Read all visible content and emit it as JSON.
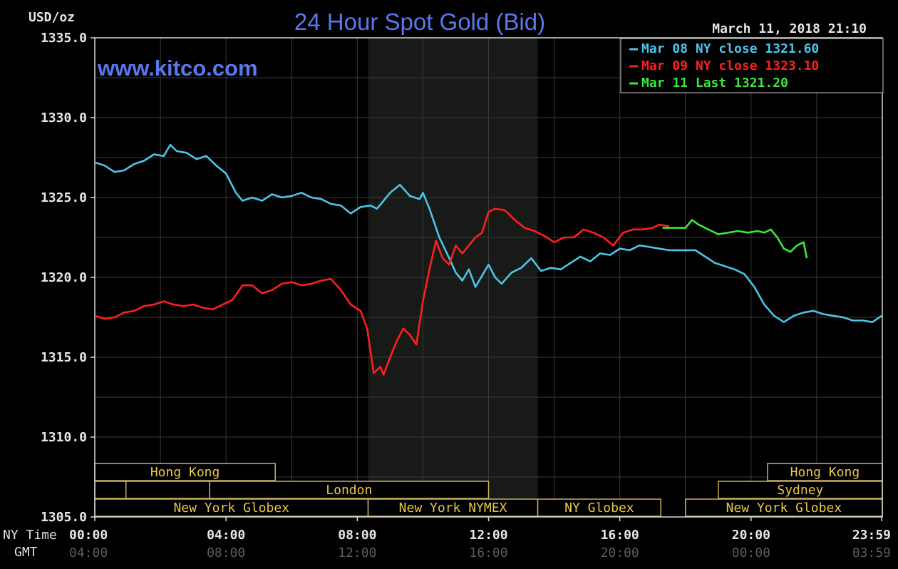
{
  "chart_data": {
    "type": "line",
    "title": "24 Hour Spot Gold (Bid)",
    "watermark": "www.kitco.com",
    "timestamp": "March 11, 2018 21:10",
    "ylabel": "USD/oz",
    "ylim": [
      1305.0,
      1335.0
    ],
    "y_ticks": [
      "1335.0",
      "1330.0",
      "1325.0",
      "1320.0",
      "1315.0",
      "1310.0",
      "1305.0"
    ],
    "y_tick_values": [
      1335,
      1330,
      1325,
      1320,
      1315,
      1310,
      1305
    ],
    "xlim": [
      0,
      24
    ],
    "x_tick_hours": [
      0,
      4,
      8,
      12,
      16,
      20,
      23.983
    ],
    "ny_time_label": "NY Time",
    "gmt_label": "GMT",
    "ny_time_ticks": [
      "00:00",
      "04:00",
      "08:00",
      "12:00",
      "16:00",
      "20:00",
      "23:59"
    ],
    "gmt_ticks": [
      "04:00",
      "08:00",
      "12:00",
      "16:00",
      "20:00",
      "00:00",
      "03:59"
    ],
    "grid": true,
    "legend_position": "top-right",
    "shaded_session": {
      "from_hour": 8.33,
      "to_hour": 13.5
    },
    "series": [
      {
        "name": "Mar 08 NY close 1321.60",
        "color": "#4fc3e8",
        "x": [
          0.0,
          0.3,
          0.6,
          0.9,
          1.2,
          1.5,
          1.8,
          2.1,
          2.3,
          2.5,
          2.8,
          3.1,
          3.4,
          3.7,
          4.0,
          4.3,
          4.5,
          4.8,
          5.1,
          5.4,
          5.7,
          6.0,
          6.3,
          6.6,
          6.9,
          7.2,
          7.5,
          7.8,
          8.1,
          8.4,
          8.6,
          8.8,
          9.0,
          9.3,
          9.6,
          9.9,
          10.0,
          10.2,
          10.5,
          10.8,
          11.0,
          11.2,
          11.4,
          11.6,
          11.8,
          12.0,
          12.2,
          12.4,
          12.7,
          13.0,
          13.3,
          13.6,
          13.9,
          14.2,
          14.5,
          14.8,
          15.1,
          15.4,
          15.7,
          16.0,
          16.3,
          16.6,
          16.9,
          17.2,
          17.5,
          17.8,
          18.0,
          18.3,
          18.6,
          18.9,
          19.2,
          19.5,
          19.8,
          20.1,
          20.4,
          20.7,
          21.0,
          21.3,
          21.6,
          21.9,
          22.2,
          22.5,
          22.8,
          23.1,
          23.4,
          23.7,
          23.983
        ],
        "values": [
          1327.2,
          1327.0,
          1326.6,
          1326.7,
          1327.1,
          1327.3,
          1327.7,
          1327.6,
          1328.3,
          1327.9,
          1327.8,
          1327.4,
          1327.6,
          1327.0,
          1326.5,
          1325.3,
          1324.8,
          1325.0,
          1324.8,
          1325.2,
          1325.0,
          1325.1,
          1325.3,
          1325.0,
          1324.9,
          1324.6,
          1324.5,
          1324.0,
          1324.4,
          1324.5,
          1324.3,
          1324.8,
          1325.3,
          1325.8,
          1325.1,
          1324.9,
          1325.3,
          1324.3,
          1322.5,
          1321.2,
          1320.3,
          1319.8,
          1320.5,
          1319.4,
          1320.1,
          1320.8,
          1320.0,
          1319.6,
          1320.3,
          1320.6,
          1321.2,
          1320.4,
          1320.6,
          1320.5,
          1320.9,
          1321.3,
          1321.0,
          1321.5,
          1321.4,
          1321.8,
          1321.7,
          1322.0,
          1321.9,
          1321.8,
          1321.7,
          1321.7,
          1321.7,
          1321.7,
          1321.3,
          1320.9,
          1320.7,
          1320.5,
          1320.2,
          1319.4,
          1318.3,
          1317.6,
          1317.2,
          1317.6,
          1317.8,
          1317.9,
          1317.7,
          1317.6,
          1317.5,
          1317.3,
          1317.3,
          1317.2,
          1317.6
        ]
      },
      {
        "name": "Mar 09 NY close 1323.10",
        "color": "#ff1f1f",
        "x": [
          0.0,
          0.3,
          0.6,
          0.9,
          1.2,
          1.5,
          1.8,
          2.1,
          2.4,
          2.7,
          3.0,
          3.3,
          3.6,
          3.9,
          4.2,
          4.5,
          4.8,
          5.1,
          5.4,
          5.7,
          6.0,
          6.3,
          6.6,
          6.9,
          7.2,
          7.5,
          7.8,
          8.1,
          8.3,
          8.5,
          8.7,
          8.8,
          9.0,
          9.2,
          9.4,
          9.6,
          9.8,
          10.0,
          10.2,
          10.4,
          10.6,
          10.8,
          11.0,
          11.2,
          11.4,
          11.6,
          11.8,
          12.0,
          12.2,
          12.5,
          12.8,
          13.1,
          13.4,
          13.7,
          14.0,
          14.3,
          14.6,
          14.9,
          15.2,
          15.5,
          15.8,
          16.1,
          16.4,
          16.7,
          17.0,
          17.2,
          17.5
        ],
        "values": [
          1317.6,
          1317.4,
          1317.5,
          1317.8,
          1317.9,
          1318.2,
          1318.3,
          1318.5,
          1318.3,
          1318.2,
          1318.3,
          1318.1,
          1318.0,
          1318.3,
          1318.6,
          1319.5,
          1319.5,
          1319.0,
          1319.2,
          1319.6,
          1319.7,
          1319.5,
          1319.6,
          1319.8,
          1319.9,
          1319.2,
          1318.3,
          1317.9,
          1316.8,
          1314.0,
          1314.4,
          1313.9,
          1315.0,
          1316.0,
          1316.8,
          1316.4,
          1315.8,
          1318.5,
          1320.5,
          1322.3,
          1321.2,
          1320.8,
          1322.0,
          1321.5,
          1322.0,
          1322.5,
          1322.8,
          1324.1,
          1324.3,
          1324.2,
          1323.6,
          1323.1,
          1322.9,
          1322.6,
          1322.2,
          1322.5,
          1322.5,
          1323.0,
          1322.8,
          1322.5,
          1322.0,
          1322.8,
          1323.0,
          1323.0,
          1323.1,
          1323.3,
          1323.2
        ]
      },
      {
        "name": "Mar 11 Last 1321.20",
        "color": "#3ae83a",
        "x": [
          17.3,
          17.6,
          18.0,
          18.2,
          18.4,
          18.7,
          19.0,
          19.3,
          19.6,
          19.9,
          20.2,
          20.4,
          20.6,
          20.8,
          21.0,
          21.2,
          21.4,
          21.6,
          21.7
        ],
        "values": [
          1323.1,
          1323.1,
          1323.1,
          1323.6,
          1323.3,
          1323.0,
          1322.7,
          1322.8,
          1322.9,
          1322.8,
          1322.9,
          1322.8,
          1323.0,
          1322.5,
          1321.8,
          1321.6,
          1322.0,
          1322.2,
          1321.2
        ]
      }
    ],
    "sessions": [
      {
        "label": "Hong Kong",
        "row": 0,
        "from": 0.0,
        "to": 5.5
      },
      {
        "label": "",
        "row": 1,
        "from": 0.0,
        "to": 0.95
      },
      {
        "label": "",
        "row": 1,
        "from": 0.95,
        "to": 3.5
      },
      {
        "label": "London",
        "row": 1,
        "from": 3.5,
        "to": 12.0
      },
      {
        "label": "New York Globex",
        "row": 2,
        "from": 0.0,
        "to": 8.33
      },
      {
        "label": "New York NYMEX",
        "row": 2,
        "from": 8.33,
        "to": 13.5
      },
      {
        "label": "NY Globex",
        "row": 2,
        "from": 13.5,
        "to": 17.25
      },
      {
        "label": "Hong Kong",
        "row": 0,
        "from": 20.5,
        "to": 24.0
      },
      {
        "label": "Sydney",
        "row": 1,
        "from": 19.0,
        "to": 24.0
      },
      {
        "label": "New York Globex",
        "row": 2,
        "from": 18.0,
        "to": 24.0
      }
    ]
  }
}
